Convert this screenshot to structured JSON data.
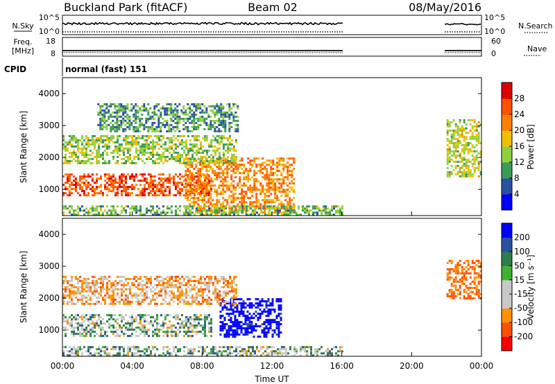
{
  "header": {
    "station": "Buckland Park (fitACF)",
    "beam": "Beam 02",
    "date": "08/May/2016"
  },
  "status_panel": {
    "nsky_label": "N.Sky",
    "nsearch_label": "N.Search",
    "log_ticks": [
      "10^5",
      "10^0"
    ],
    "freq_label": "Freq.",
    "freq_unit": "[MHz]",
    "freq_ticks": [
      "18",
      "8"
    ],
    "nave_label": "Nave",
    "nave_ticks": [
      "60",
      "0"
    ],
    "cpid_label": "CPID",
    "cpid_value": "normal (fast) 151"
  },
  "colors": {
    "power": [
      "#0000ff",
      "#2a50a0",
      "#3c9a58",
      "#90d040",
      "#f0c000",
      "#ff8000",
      "#ff5000",
      "#e00000"
    ],
    "velocity": [
      "#ff0000",
      "#ff5000",
      "#ff9000",
      "#c8c8c8",
      "#c8c8c8",
      "#40b030",
      "#2f7a4e",
      "#2a50a0",
      "#0000ff"
    ]
  },
  "chart_data": [
    {
      "type": "heatmap",
      "name": "power",
      "ylabel": "Slant Range [km]",
      "ylim": [
        180,
        4500
      ],
      "xlim": [
        0,
        24
      ],
      "yticks": [
        "1000",
        "2000",
        "3000",
        "4000"
      ],
      "colorbar": {
        "label": "Power [dB]",
        "ticks": [
          "4",
          "8",
          "12",
          "16",
          "20",
          "24",
          "28"
        ],
        "range": [
          0,
          32
        ]
      },
      "data_gap": [
        16.0,
        21.8
      ],
      "echo_regions": [
        {
          "t0": 0.0,
          "t1": 8.5,
          "r0": 800,
          "r1": 1500,
          "value": 26
        },
        {
          "t0": 7.0,
          "t1": 13.3,
          "r0": 250,
          "r1": 2000,
          "value": 22
        },
        {
          "t0": 0.0,
          "t1": 10.0,
          "r0": 1800,
          "r1": 2700,
          "value": 14
        },
        {
          "t0": 2.0,
          "t1": 10.0,
          "r0": 2800,
          "r1": 3700,
          "value": 10
        },
        {
          "t0": 22.0,
          "t1": 24.0,
          "r0": 1400,
          "r1": 3200,
          "value": 16
        },
        {
          "t0": 0.0,
          "t1": 16.0,
          "r0": 180,
          "r1": 500,
          "value": 12
        }
      ]
    },
    {
      "type": "heatmap",
      "name": "velocity",
      "xlabel": "Time UT",
      "ylabel": "Slant Range [km]",
      "ylim": [
        180,
        4500
      ],
      "xlim": [
        0,
        24
      ],
      "xticks": [
        "00:00",
        "04:00",
        "08:00",
        "12:00",
        "16:00",
        "20:00",
        "00:00"
      ],
      "yticks": [
        "1000",
        "2000",
        "3000",
        "4000"
      ],
      "colorbar": {
        "label": "Velocity [m s⁻¹]",
        "ticks": [
          "-200",
          "-100",
          "-50",
          "-15",
          "15",
          "50",
          "100",
          "200"
        ]
      },
      "data_gap": [
        16.0,
        21.8
      ],
      "echo_regions": [
        {
          "t0": 0.0,
          "t1": 8.5,
          "r0": 800,
          "r1": 1500,
          "value": 0
        },
        {
          "t0": 9.0,
          "t1": 12.5,
          "r0": 800,
          "r1": 2000,
          "value": 150
        },
        {
          "t0": 0.0,
          "t1": 10.0,
          "r0": 1800,
          "r1": 2700,
          "value": -60
        },
        {
          "t0": 22.0,
          "t1": 24.0,
          "r0": 2000,
          "r1": 3200,
          "value": -120
        },
        {
          "t0": 0.0,
          "t1": 16.0,
          "r0": 180,
          "r1": 500,
          "value": 0
        }
      ]
    }
  ]
}
